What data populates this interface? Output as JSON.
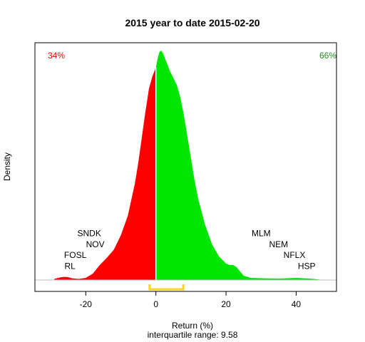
{
  "chart_data": {
    "type": "area",
    "title": "2015  year to date 2015-02-20",
    "xlabel": "Return (%)",
    "ylabel": "Density",
    "subtitle": "interquartile range: 9.58",
    "xlim": [
      -34.5,
      51.5
    ],
    "ylim": [
      0,
      0.068
    ],
    "xticks": [
      "-20",
      "0",
      "20",
      "40"
    ],
    "negative_share": "34%",
    "positive_share": "66%",
    "negative_color": "#ff0000",
    "positive_color": "#00e600",
    "iqr_color": "#ffd21e",
    "iqr_range": [
      -1.8,
      7.8
    ],
    "split_at": 0,
    "density": {
      "x": [
        -29,
        -27,
        -26,
        -25,
        -24,
        -22,
        -20,
        -18,
        -17,
        -16,
        -15,
        -14,
        -12,
        -10,
        -8,
        -6,
        -5,
        -4,
        -3,
        -2,
        -1,
        0,
        0.5,
        1,
        1.5,
        2,
        3,
        4,
        5,
        6,
        7,
        8,
        9,
        10,
        11,
        12,
        14,
        16,
        18,
        20,
        21,
        22,
        23,
        24,
        25,
        27,
        30,
        35,
        40,
        44,
        46,
        47
      ],
      "y": [
        0.0003,
        0.0008,
        0.0009,
        0.0008,
        0.0005,
        0.0003,
        0.0006,
        0.0018,
        0.003,
        0.0042,
        0.0052,
        0.0062,
        0.0085,
        0.0125,
        0.018,
        0.027,
        0.033,
        0.04,
        0.047,
        0.0535,
        0.057,
        0.0595,
        0.062,
        0.0638,
        0.0642,
        0.0635,
        0.061,
        0.0585,
        0.0565,
        0.0545,
        0.051,
        0.046,
        0.04,
        0.034,
        0.028,
        0.023,
        0.0155,
        0.01,
        0.0066,
        0.0046,
        0.0042,
        0.0042,
        0.0036,
        0.0024,
        0.0012,
        0.0006,
        0.0005,
        0.0004,
        0.0006,
        0.0004,
        0.0002,
        0.0001
      ]
    },
    "left_labels": [
      {
        "text": "SNDK",
        "x": -19,
        "y": 0.0123
      },
      {
        "text": "NOV",
        "x": -17.3,
        "y": 0.0092
      },
      {
        "text": "FOSL",
        "x": -23,
        "y": 0.0062
      },
      {
        "text": "RL",
        "x": -24.5,
        "y": 0.0031
      }
    ],
    "right_labels": [
      {
        "text": "MLM",
        "x": 30,
        "y": 0.0123
      },
      {
        "text": "NEM",
        "x": 35,
        "y": 0.0092
      },
      {
        "text": "NFLX",
        "x": 39.5,
        "y": 0.0062
      },
      {
        "text": "HSP",
        "x": 43,
        "y": 0.0031
      }
    ]
  }
}
